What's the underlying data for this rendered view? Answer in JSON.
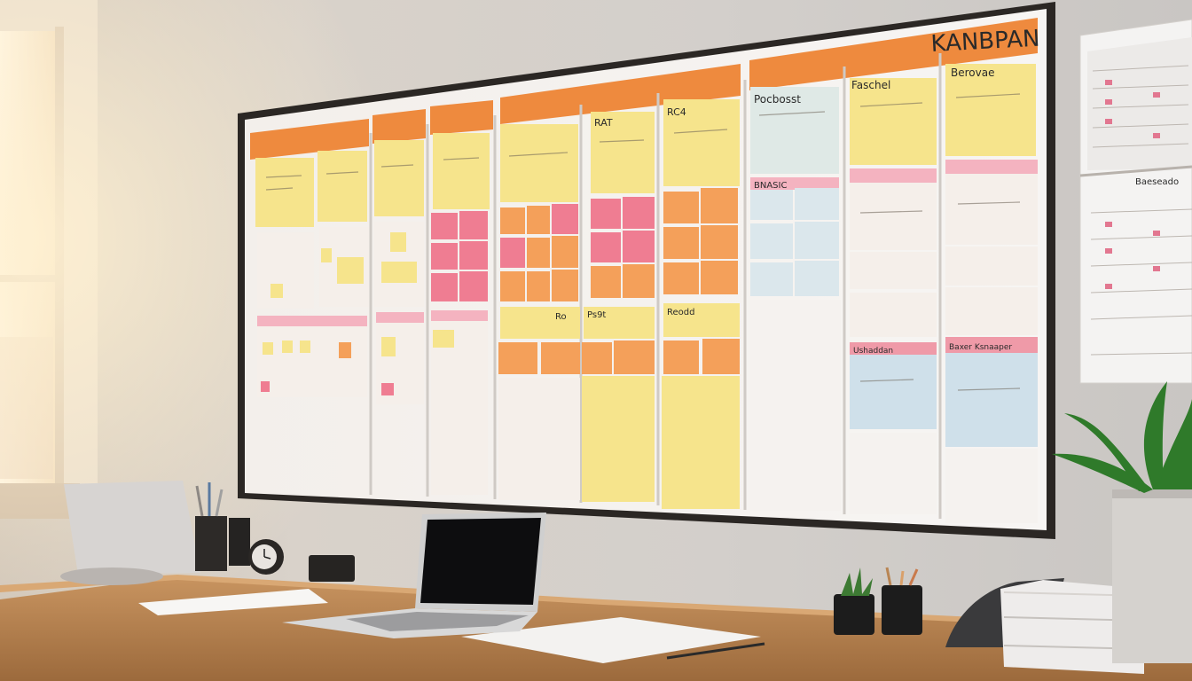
{
  "board": {
    "title": "KANBPAN",
    "col_labels": [
      "Pocbosst",
      "Faschel",
      "Berovae"
    ],
    "note_marks": [
      "RAT",
      "RC4",
      "Ro",
      "Ps9t",
      "BNASIC",
      "Ushaddan",
      "Baxer Ksnaaper",
      "Reodd"
    ]
  },
  "wall_chart": {
    "title": "Baeseado"
  },
  "colors": {
    "header_orange": "#ee8a3e",
    "note_yellow": "#f6e48c",
    "note_pink": "#ef7d92",
    "note_orange": "#f4a05a",
    "note_blue": "#cfe0ea",
    "board_frame": "#2b2724",
    "desk_wood": "#b98553"
  }
}
